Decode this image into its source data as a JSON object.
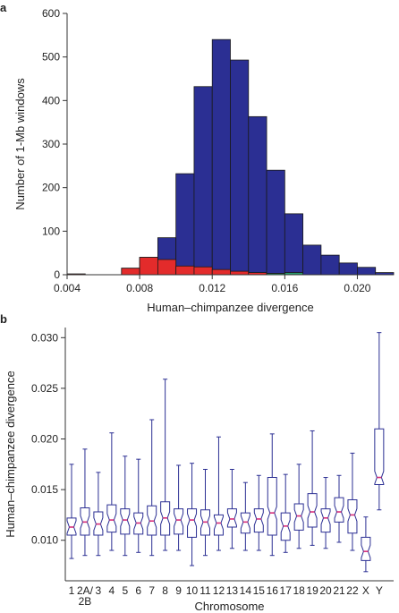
{
  "panels": {
    "a": "a",
    "b": "b"
  },
  "chart_data": [
    {
      "type": "bar",
      "panel": "a",
      "xlabel": "Human–chimpanzee divergence",
      "ylabel": "Number of 1-Mb windows",
      "xlim": [
        0.004,
        0.022
      ],
      "ylim": [
        0,
        600
      ],
      "xticks": [
        0.004,
        0.008,
        0.012,
        0.016,
        0.02
      ],
      "xtick_labels": [
        "0.004",
        "0.008",
        "0.012",
        "0.016",
        "0.020"
      ],
      "yticks": [
        0,
        100,
        200,
        300,
        400,
        500,
        600
      ],
      "ytick_labels": [
        "0",
        "100",
        "200",
        "300",
        "400",
        "500",
        "600"
      ],
      "bin_width": 0.001,
      "bin_starts": [
        0.004,
        0.005,
        0.006,
        0.007,
        0.008,
        0.009,
        0.01,
        0.011,
        0.012,
        0.013,
        0.014,
        0.015,
        0.016,
        0.017,
        0.018,
        0.019,
        0.02,
        0.021
      ],
      "series": [
        {
          "color": "#2b2f93",
          "values": [
            0,
            0,
            0,
            15,
            40,
            85,
            232,
            432,
            540,
            493,
            363,
            240,
            140,
            68,
            45,
            27,
            17,
            5
          ]
        },
        {
          "color": "#e32b2b",
          "values": [
            2,
            0,
            0,
            15,
            40,
            35,
            20,
            18,
            12,
            8,
            5,
            3,
            0,
            0,
            0,
            0,
            0,
            0
          ]
        },
        {
          "color": "#2a9a6a",
          "values": [
            0,
            0,
            0,
            0,
            0,
            0,
            0,
            0,
            0,
            0,
            0,
            3,
            5,
            0,
            0,
            0,
            0,
            0
          ]
        }
      ]
    },
    {
      "type": "box",
      "panel": "b",
      "xlabel": "Chromosome",
      "ylabel": "Human–chimpanzee divergence",
      "ylim": [
        0.006,
        0.031
      ],
      "yticks": [
        0.01,
        0.015,
        0.02,
        0.025,
        0.03
      ],
      "ytick_labels": [
        "0.010",
        "0.015",
        "0.020",
        "0.025",
        "0.030"
      ],
      "box_color": "#2b2f93",
      "median_color": "#d9307a",
      "categories": [
        "1",
        "2A/\n2B",
        "3",
        "4",
        "5",
        "6",
        "7",
        "8",
        "9",
        "10",
        "11",
        "12",
        "13",
        "14",
        "15",
        "16",
        "17",
        "18",
        "19",
        "20",
        "21",
        "22",
        "X",
        "Y"
      ],
      "boxes": [
        {
          "min": 0.0082,
          "q1": 0.0105,
          "median": 0.0113,
          "q3": 0.0122,
          "max": 0.0175
        },
        {
          "min": 0.0085,
          "q1": 0.0105,
          "median": 0.0118,
          "q3": 0.0132,
          "max": 0.019
        },
        {
          "min": 0.0085,
          "q1": 0.0105,
          "median": 0.0116,
          "q3": 0.0128,
          "max": 0.0167
        },
        {
          "min": 0.009,
          "q1": 0.0108,
          "median": 0.012,
          "q3": 0.0135,
          "max": 0.0206
        },
        {
          "min": 0.0085,
          "q1": 0.0106,
          "median": 0.012,
          "q3": 0.0131,
          "max": 0.0183
        },
        {
          "min": 0.0088,
          "q1": 0.0106,
          "median": 0.0117,
          "q3": 0.0127,
          "max": 0.018
        },
        {
          "min": 0.0085,
          "q1": 0.0105,
          "median": 0.0119,
          "q3": 0.0134,
          "max": 0.0219
        },
        {
          "min": 0.009,
          "q1": 0.0105,
          "median": 0.0122,
          "q3": 0.0138,
          "max": 0.0259
        },
        {
          "min": 0.009,
          "q1": 0.0106,
          "median": 0.012,
          "q3": 0.0131,
          "max": 0.0174
        },
        {
          "min": 0.0075,
          "q1": 0.0103,
          "median": 0.012,
          "q3": 0.0131,
          "max": 0.0176
        },
        {
          "min": 0.0085,
          "q1": 0.0105,
          "median": 0.0118,
          "q3": 0.013,
          "max": 0.017
        },
        {
          "min": 0.009,
          "q1": 0.0105,
          "median": 0.0117,
          "q3": 0.0125,
          "max": 0.0202
        },
        {
          "min": 0.0092,
          "q1": 0.0113,
          "median": 0.0121,
          "q3": 0.0131,
          "max": 0.017
        },
        {
          "min": 0.009,
          "q1": 0.0107,
          "median": 0.0118,
          "q3": 0.0127,
          "max": 0.0157
        },
        {
          "min": 0.009,
          "q1": 0.0108,
          "median": 0.0121,
          "q3": 0.0131,
          "max": 0.0164
        },
        {
          "min": 0.0085,
          "q1": 0.0105,
          "median": 0.0127,
          "q3": 0.0162,
          "max": 0.0205
        },
        {
          "min": 0.0088,
          "q1": 0.01,
          "median": 0.0114,
          "q3": 0.0127,
          "max": 0.0165
        },
        {
          "min": 0.0092,
          "q1": 0.011,
          "median": 0.0124,
          "q3": 0.0136,
          "max": 0.0175
        },
        {
          "min": 0.0095,
          "q1": 0.0113,
          "median": 0.0128,
          "q3": 0.0146,
          "max": 0.0208
        },
        {
          "min": 0.0092,
          "q1": 0.0108,
          "median": 0.0122,
          "q3": 0.0131,
          "max": 0.0162
        },
        {
          "min": 0.0098,
          "q1": 0.0118,
          "median": 0.0128,
          "q3": 0.0142,
          "max": 0.0164
        },
        {
          "min": 0.009,
          "q1": 0.0107,
          "median": 0.0125,
          "q3": 0.014,
          "max": 0.0186
        },
        {
          "min": 0.0069,
          "q1": 0.008,
          "median": 0.0089,
          "q3": 0.0103,
          "max": 0.0123
        },
        {
          "min": 0.013,
          "q1": 0.0155,
          "median": 0.0162,
          "q3": 0.021,
          "max": 0.0305
        }
      ]
    }
  ]
}
